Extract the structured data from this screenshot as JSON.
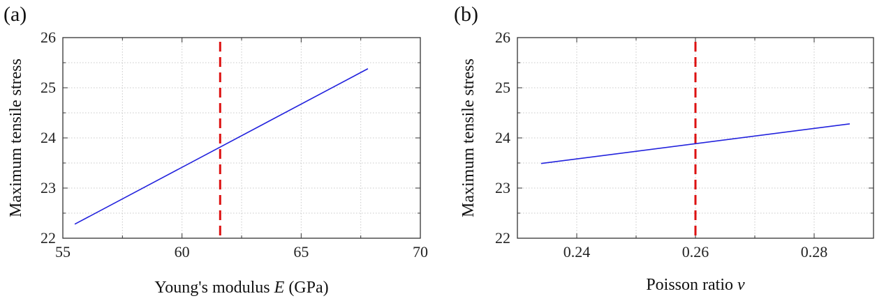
{
  "chart_data": [
    {
      "type": "line",
      "panel_label": "(a)",
      "xlabel_prefix": "Young's modulus ",
      "xlabel_var": "E",
      "xlabel_suffix": " (GPa)",
      "ylabel": "Maximum tensile stress",
      "xlim": [
        55,
        70
      ],
      "ylim": [
        22,
        26
      ],
      "xticks": [
        55,
        60,
        65,
        70
      ],
      "xtick_labels": [
        "55",
        "60",
        "65",
        "70"
      ],
      "yticks": [
        22,
        23,
        24,
        25,
        26
      ],
      "ytick_labels": [
        "22",
        "23",
        "24",
        "25",
        "26"
      ],
      "grid": true,
      "series": [
        {
          "name": "stress",
          "color": "#2222dd",
          "x": [
            55.5,
            67.8
          ],
          "y": [
            22.28,
            25.38
          ]
        }
      ],
      "reference_line": {
        "x": 61.6,
        "color": "#dd1111",
        "style": "dashed"
      }
    },
    {
      "type": "line",
      "panel_label": "(b)",
      "xlabel_prefix": "Poisson ratio ",
      "xlabel_var": "v",
      "xlabel_suffix": "",
      "ylabel": "Maximum tensile stress",
      "xlim": [
        0.23,
        0.29
      ],
      "ylim": [
        22,
        26
      ],
      "xticks": [
        0.24,
        0.26,
        0.28
      ],
      "xtick_labels": [
        "0.24",
        "0.26",
        "0.28"
      ],
      "yticks": [
        22,
        23,
        24,
        25,
        26
      ],
      "ytick_labels": [
        "22",
        "23",
        "24",
        "25",
        "26"
      ],
      "grid": true,
      "series": [
        {
          "name": "stress",
          "color": "#2222dd",
          "x": [
            0.234,
            0.286
          ],
          "y": [
            23.49,
            24.28
          ]
        }
      ],
      "reference_line": {
        "x": 0.26,
        "color": "#dd1111",
        "style": "dashed"
      }
    }
  ]
}
